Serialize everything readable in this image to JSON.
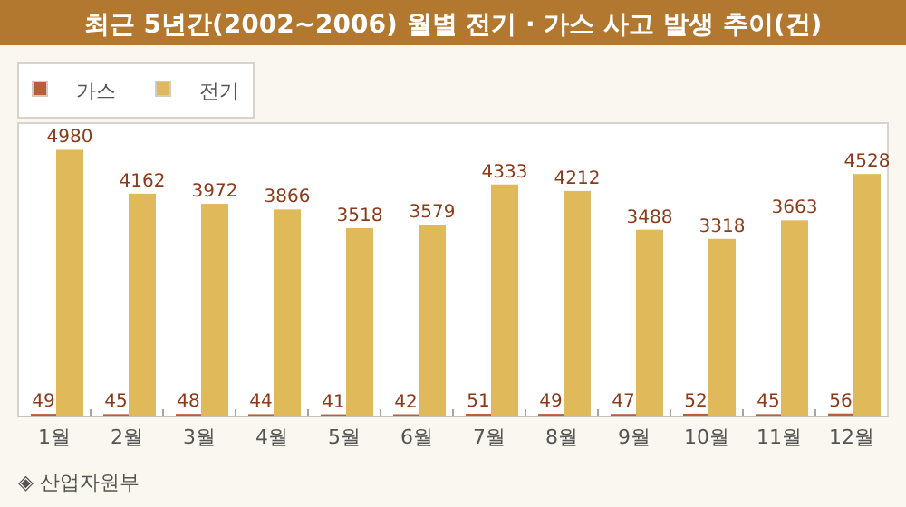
{
  "chart_data": {
    "type": "bar",
    "title": "최근 5년간(2002~2006) 월별 전기 · 가스 사고 발생 추이(건)",
    "categories": [
      "1월",
      "2월",
      "3월",
      "4월",
      "5월",
      "6월",
      "7월",
      "8월",
      "9월",
      "10월",
      "11월",
      "12월"
    ],
    "series": [
      {
        "name": "가스",
        "color": "#b8603a",
        "values": [
          49,
          45,
          48,
          44,
          41,
          42,
          51,
          49,
          47,
          52,
          45,
          56
        ]
      },
      {
        "name": "전기",
        "color": "#e0b95a",
        "values": [
          4980,
          4162,
          3972,
          3866,
          3518,
          3579,
          4333,
          4212,
          3488,
          3318,
          3663,
          4528
        ]
      }
    ],
    "data_labels": true,
    "legend": "top left",
    "annotations": [
      "◈ 산업자원부"
    ]
  }
}
